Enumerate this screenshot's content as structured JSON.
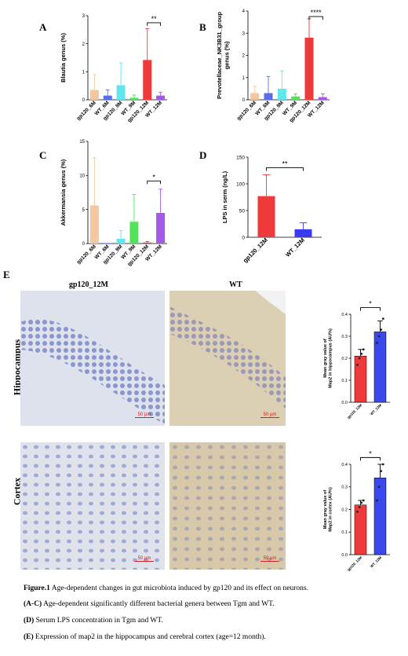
{
  "panels": {
    "A": {
      "letter": "A",
      "ylabel": "Blautia genus (%)",
      "ylim": [
        0,
        3
      ],
      "yticks": [
        "0",
        "1",
        "2",
        "3"
      ],
      "sig": "**"
    },
    "B": {
      "letter": "B",
      "ylabel": "Prevotellaceae_NK3B31_group genus (%)",
      "ylim": [
        0,
        4
      ],
      "yticks": [
        "0",
        "1",
        "2",
        "3",
        "4"
      ],
      "sig": "****"
    },
    "C": {
      "letter": "C",
      "ylabel": "Akkermansia genus (%)",
      "ylim": [
        0,
        15
      ],
      "yticks": [
        "0",
        "5",
        "10",
        "15"
      ],
      "sig": "*"
    },
    "D": {
      "letter": "D",
      "ylabel": "LPS in serm (ng/L)",
      "ylim": [
        0,
        150
      ],
      "yticks": [
        "0",
        "50",
        "100",
        "150"
      ],
      "sig": "**"
    },
    "E": {
      "letter": "E",
      "col_left": "gp120_12M",
      "col_right": "WT",
      "row_top": "Hippocampus",
      "row_bottom": "Cortex",
      "scale": "50 μm",
      "hippo_ylabel": "Mean gray value of Map2 in hippocampus (AU%)",
      "cortex_ylabel": "Mean gray value of Map2 in cortex (AU%)",
      "yticks": [
        "0.0",
        "0.1",
        "0.2",
        "0.3",
        "0.4"
      ],
      "sig": "*"
    }
  },
  "chart_data": [
    {
      "type": "bar",
      "panel": "A",
      "categories": [
        "gp120_6M",
        "WT_6M",
        "gp120_9M",
        "WT_9M",
        "gp120_12M",
        "WT_12M"
      ],
      "values": [
        0.35,
        0.15,
        0.52,
        0.07,
        1.42,
        0.15
      ],
      "errors": [
        0.55,
        0.2,
        0.8,
        0.1,
        1.12,
        0.12
      ],
      "ylabel": "Blautia genus (%)",
      "ylim": [
        0,
        3
      ]
    },
    {
      "type": "bar",
      "panel": "B",
      "categories": [
        "gp120_6M",
        "WT_6M",
        "gp120_9M",
        "WT_9M",
        "gp120_12M",
        "WT_12M"
      ],
      "values": [
        0.3,
        0.3,
        0.5,
        0.15,
        2.8,
        0.12
      ],
      "errors": [
        0.3,
        0.75,
        0.8,
        0.12,
        0.85,
        0.15
      ],
      "ylabel": "Prevotellaceae_NK3B31_group genus (%)",
      "ylim": [
        0,
        4
      ]
    },
    {
      "type": "bar",
      "panel": "C",
      "categories": [
        "gp120_6M",
        "WT_6M",
        "gp120_9M",
        "WT_9M",
        "gp120_12M",
        "WT_12M"
      ],
      "values": [
        5.6,
        0,
        0.7,
        3.2,
        0.15,
        4.5
      ],
      "errors": [
        7.0,
        0,
        1.2,
        4.0,
        0.15,
        3.5
      ],
      "ylabel": "Akkermansia genus (%)",
      "ylim": [
        0,
        15
      ]
    },
    {
      "type": "bar",
      "panel": "D",
      "categories": [
        "gp120_12M",
        "WT_12M"
      ],
      "values": [
        77,
        15
      ],
      "errors": [
        40,
        12
      ],
      "ylabel": "LPS in serm (ng/L)",
      "ylim": [
        0,
        150
      ]
    },
    {
      "type": "bar",
      "panel": "E-hippocampus",
      "categories": [
        "gp120_12M",
        "WT_12M"
      ],
      "values": [
        0.21,
        0.32
      ],
      "errors": [
        0.03,
        0.05
      ],
      "points": [
        [
          0.17,
          0.2,
          0.22,
          0.24
        ],
        [
          0.27,
          0.3,
          0.33,
          0.38
        ]
      ],
      "ylabel": "Mean gray value of Map2 in hippocampus (AU%)",
      "ylim": [
        0,
        0.4
      ]
    },
    {
      "type": "bar",
      "panel": "E-cortex",
      "categories": [
        "gp120_12M",
        "WT_12M"
      ],
      "values": [
        0.22,
        0.34
      ],
      "errors": [
        0.02,
        0.06
      ],
      "points": [
        [
          0.19,
          0.21,
          0.23,
          0.24
        ],
        [
          0.24,
          0.3,
          0.37,
          0.4
        ]
      ],
      "ylabel": "Mean gray value of Map2 in cortex (AU%)",
      "ylim": [
        0,
        0.4
      ]
    }
  ],
  "colors": {
    "gp120_6M": "#f6c79e",
    "WT_6M": "#5a6ee8",
    "gp120_9M": "#62e6ee",
    "WT_9M": "#52e35a",
    "gp120_12M": "#ee3a3a",
    "WT_12M": "#a55ae6",
    "D_wt": "#3a3aee",
    "E_wt": "#3a48ee",
    "tissue_blue": "#b9c2dc",
    "tissue_brown": "#c9b796"
  },
  "caption": {
    "title_bold": "Figure.1",
    "title_text": " Age-dependent changes in gut microbiota induced by gp120 and its effect on neurons.",
    "l1_bold": "(A-C)",
    "l1_text": " Age-dependent significantly different bacterial genera between Tgm and WT.",
    "l2_bold": "(D)",
    "l2_text": " Serum LPS concentration in Tgm and WT.",
    "l3_bold": "(E)",
    "l3_text": " Expression of map2 in the hippocampus and cerebral cortex (age=12 month)."
  }
}
